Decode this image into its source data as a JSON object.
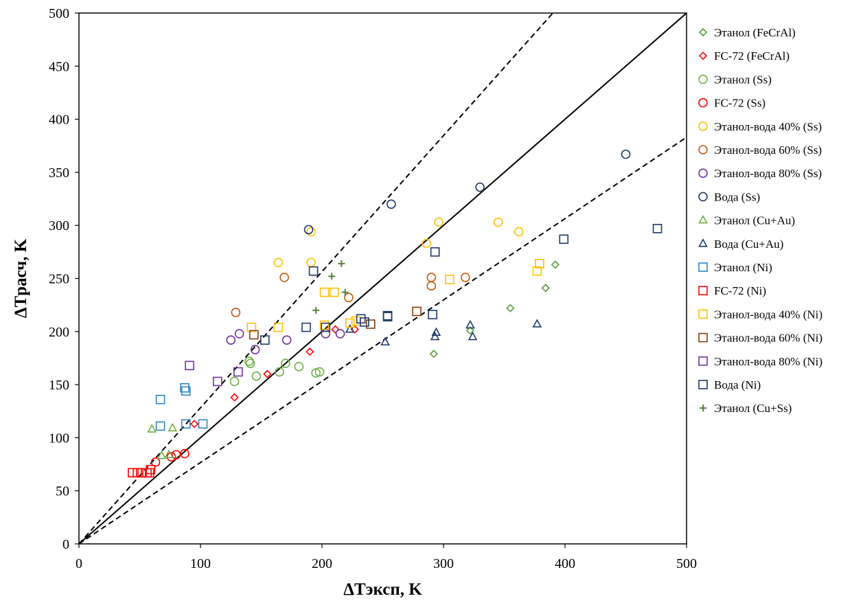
{
  "chart_data": {
    "type": "scatter",
    "title": "",
    "xlabel": "ΔTэксп, K",
    "ylabel": "ΔTрасч, K",
    "xlim": [
      0,
      500
    ],
    "ylim": [
      0,
      500
    ],
    "x_ticks": [
      0,
      100,
      200,
      300,
      400,
      500
    ],
    "y_ticks": [
      0,
      50,
      100,
      150,
      200,
      250,
      300,
      350,
      400,
      450,
      500
    ],
    "grid": false,
    "legend_position": "right",
    "reference_lines": [
      {
        "style": "solid",
        "points": [
          [
            0,
            0
          ],
          [
            500,
            500
          ]
        ]
      },
      {
        "style": "dashed",
        "points": [
          [
            0,
            0
          ],
          [
            390,
            500
          ]
        ]
      },
      {
        "style": "dashed",
        "points": [
          [
            0,
            0
          ],
          [
            500,
            383
          ]
        ]
      }
    ],
    "series": [
      {
        "name": "Этанол (FeCrAl)",
        "marker": "diamond",
        "color": "#5a9a3c",
        "points": [
          [
            292,
            179
          ],
          [
            322,
            201
          ],
          [
            355,
            222
          ],
          [
            384,
            241
          ],
          [
            392,
            263
          ]
        ]
      },
      {
        "name": "FC-72 (FeCrAl)",
        "marker": "diamond",
        "color": "#ff0000",
        "points": [
          [
            95,
            113
          ],
          [
            128,
            138
          ],
          [
            155,
            160
          ],
          [
            190,
            181
          ],
          [
            211,
            202
          ],
          [
            227,
            202
          ]
        ]
      },
      {
        "name": "Этанол (Ss)",
        "marker": "circle",
        "color": "#70ad47",
        "points": [
          [
            128,
            153
          ],
          [
            140,
            172
          ],
          [
            141,
            170
          ],
          [
            146,
            158
          ],
          [
            165,
            162
          ],
          [
            170,
            170
          ],
          [
            181,
            167
          ],
          [
            195,
            161
          ],
          [
            198,
            162
          ]
        ]
      },
      {
        "name": "FC-72 (Ss)",
        "marker": "circle",
        "color": "#ff0000",
        "points": [
          [
            63,
            77
          ],
          [
            76,
            82
          ],
          [
            80,
            84
          ],
          [
            87,
            85
          ]
        ]
      },
      {
        "name": "Этанол-вода 40% (Ss)",
        "marker": "circle",
        "color": "#ffc000",
        "points": [
          [
            164,
            265
          ],
          [
            191,
            294
          ],
          [
            191,
            265
          ],
          [
            286,
            283
          ],
          [
            296,
            303
          ],
          [
            345,
            303
          ],
          [
            362,
            294
          ]
        ]
      },
      {
        "name": "Этанол-вода 60% (Ss)",
        "marker": "circle",
        "color": "#c55a11",
        "points": [
          [
            129,
            218
          ],
          [
            169,
            251
          ],
          [
            222,
            232
          ],
          [
            290,
            251
          ],
          [
            290,
            243
          ],
          [
            318,
            251
          ]
        ]
      },
      {
        "name": "Этанол-вода 80% (Ss)",
        "marker": "circle",
        "color": "#7030a0",
        "points": [
          [
            125,
            192
          ],
          [
            132,
            198
          ],
          [
            145,
            183
          ],
          [
            171,
            192
          ],
          [
            203,
            198
          ],
          [
            215,
            198
          ]
        ]
      },
      {
        "name": "Вода (Ss)",
        "marker": "circle",
        "color": "#1f3864",
        "points": [
          [
            189,
            296
          ],
          [
            257,
            320
          ],
          [
            330,
            336
          ],
          [
            450,
            367
          ]
        ]
      },
      {
        "name": "Этанол (Cu+Au)",
        "marker": "triangle",
        "color": "#70ad47",
        "points": [
          [
            60,
            108
          ],
          [
            68,
            83
          ],
          [
            74,
            84
          ],
          [
            77,
            109
          ]
        ]
      },
      {
        "name": "Вода (Cu+Au)",
        "marker": "triangle",
        "color": "#1f3864",
        "points": [
          [
            223,
            202
          ],
          [
            252,
            190
          ],
          [
            293,
            195
          ],
          [
            294,
            199
          ],
          [
            322,
            206
          ],
          [
            324,
            195
          ],
          [
            377,
            207
          ]
        ]
      },
      {
        "name": "Этанол (Ni)",
        "marker": "square",
        "color": "#2e86c1",
        "points": [
          [
            67,
            136
          ],
          [
            67,
            111
          ],
          [
            87,
            147
          ],
          [
            88,
            144
          ],
          [
            88,
            113
          ],
          [
            102,
            113
          ]
        ]
      },
      {
        "name": "FC-72 (Ni)",
        "marker": "square",
        "color": "#ff0000",
        "points": [
          [
            44,
            67
          ],
          [
            48,
            67
          ],
          [
            52,
            67
          ],
          [
            56,
            67
          ],
          [
            58,
            67
          ],
          [
            59,
            70
          ]
        ]
      },
      {
        "name": "Этанол-вода 40% (Ni)",
        "marker": "square",
        "color": "#ffc000",
        "points": [
          [
            142,
            204
          ],
          [
            164,
            204
          ],
          [
            202,
            237
          ],
          [
            210,
            237
          ],
          [
            202,
            206
          ],
          [
            223,
            208
          ],
          [
            228,
            210
          ],
          [
            305,
            249
          ],
          [
            377,
            257
          ],
          [
            379,
            264
          ]
        ]
      },
      {
        "name": "Этанол-вода 60% (Ni)",
        "marker": "square",
        "color": "#843c0c",
        "points": [
          [
            144,
            197
          ],
          [
            240,
            207
          ],
          [
            278,
            219
          ]
        ]
      },
      {
        "name": "Этанол-вода 80% (Ni)",
        "marker": "square",
        "color": "#7030a0",
        "points": [
          [
            91,
            168
          ],
          [
            114,
            153
          ],
          [
            131,
            162
          ]
        ]
      },
      {
        "name": "Вода (Ni)",
        "marker": "square",
        "color": "#1f3864",
        "points": [
          [
            153,
            192
          ],
          [
            187,
            204
          ],
          [
            193,
            257
          ],
          [
            203,
            204
          ],
          [
            232,
            212
          ],
          [
            235,
            209
          ],
          [
            254,
            215
          ],
          [
            254,
            214
          ],
          [
            291,
            216
          ],
          [
            293,
            275
          ],
          [
            399,
            287
          ],
          [
            476,
            297
          ]
        ]
      },
      {
        "name": "Этанол (Cu+Ss)",
        "marker": "plus",
        "color": "#548235",
        "points": [
          [
            195,
            220
          ],
          [
            208,
            252
          ],
          [
            216,
            264
          ],
          [
            219,
            237
          ]
        ]
      }
    ]
  }
}
